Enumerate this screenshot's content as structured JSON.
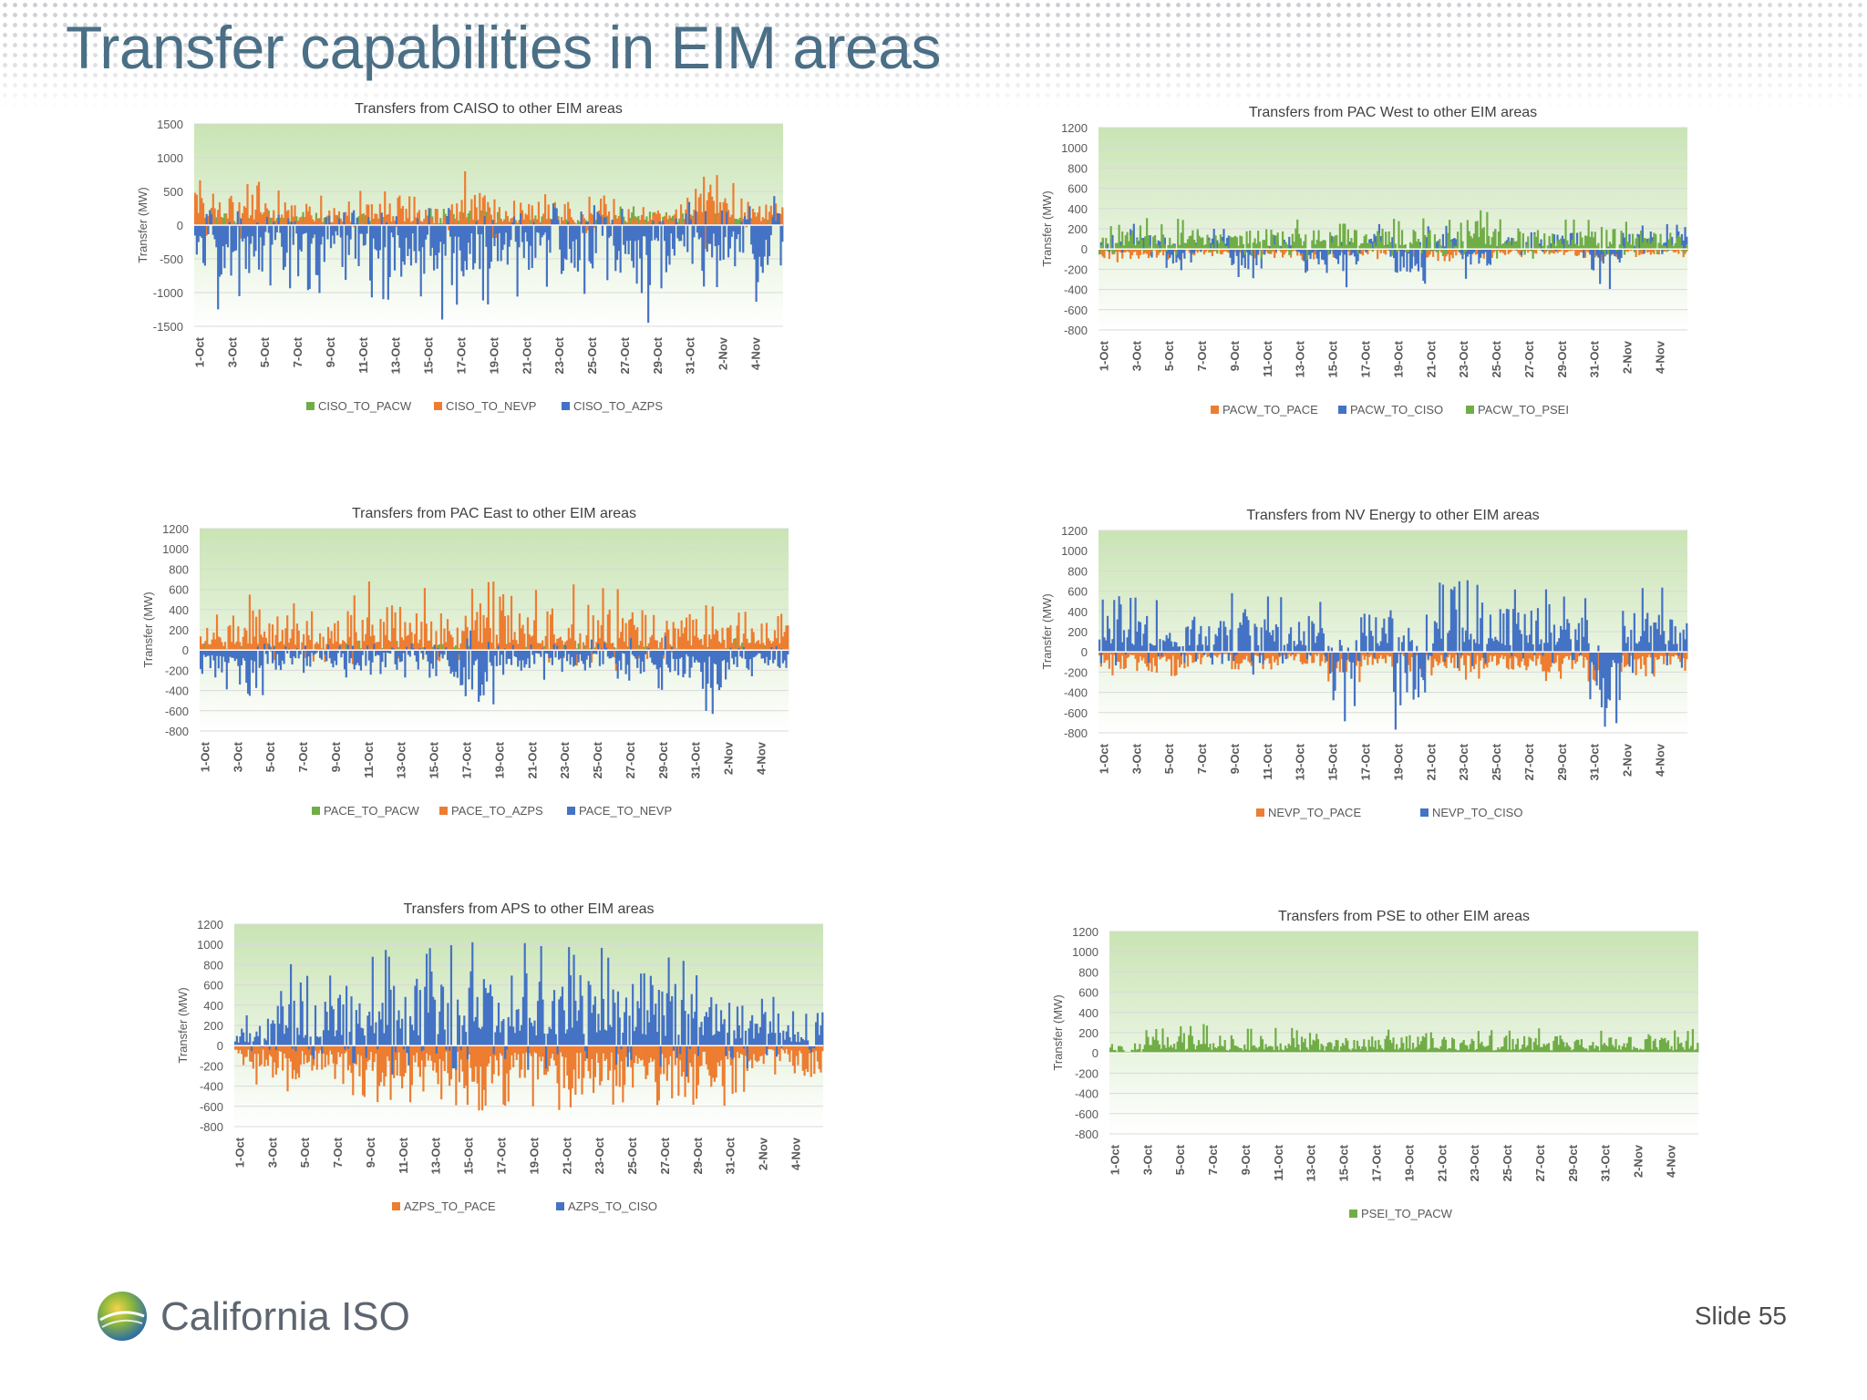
{
  "slide": {
    "title": "Transfer capabilities in EIM areas",
    "logo_text": "California ISO",
    "slide_number": "Slide 55"
  },
  "colors": {
    "green": "#70ad47",
    "orange": "#ed7d31",
    "blue": "#4472c4",
    "title": "#4a6f86",
    "plot_bg_top": "#c9e4b4",
    "plot_bg_bottom": "#ffffff"
  },
  "chart_data": [
    {
      "type": "bar",
      "title": "Transfers from CAISO to other EIM areas",
      "ylabel": "Transfer (MW)",
      "xlabel": "",
      "ylim": [
        -1500,
        1500
      ],
      "yticks": [
        1500,
        1000,
        500,
        0,
        -500,
        -1000,
        -1500
      ],
      "categories": [
        "1-Oct",
        "3-Oct",
        "5-Oct",
        "7-Oct",
        "9-Oct",
        "11-Oct",
        "13-Oct",
        "15-Oct",
        "17-Oct",
        "19-Oct",
        "21-Oct",
        "23-Oct",
        "25-Oct",
        "27-Oct",
        "29-Oct",
        "31-Oct",
        "2-Nov",
        "4-Nov"
      ],
      "legend_position": "bottom",
      "series": [
        {
          "name": "CISO_TO_PACW",
          "color": "#70ad47",
          "values": [
            300,
            150,
            250,
            200,
            150,
            250,
            100,
            250,
            350,
            200,
            250,
            150,
            150,
            300,
            300,
            350,
            200,
            150
          ]
        },
        {
          "name": "CISO_TO_NEVP",
          "color": "#ed7d31",
          "values": [
            750,
            650,
            600,
            450,
            400,
            550,
            450,
            850,
            800,
            550,
            500,
            350,
            450,
            400,
            350,
            1100,
            700,
            500
          ]
        },
        {
          "name": "CISO_TO_AZPS",
          "color": "#4472c4",
          "values": [
            -1300,
            -1150,
            -1000,
            -1100,
            -900,
            -1250,
            -1100,
            -1400,
            -1200,
            -1100,
            -1050,
            -1150,
            -1350,
            -1450,
            -1100,
            -1000,
            -900,
            -1300
          ]
        }
      ]
    },
    {
      "type": "bar",
      "title": "Transfers from PAC West to other EIM areas",
      "ylabel": "Transfer (MW)",
      "xlabel": "",
      "ylim": [
        -800,
        1200
      ],
      "yticks": [
        1200,
        1000,
        800,
        600,
        400,
        200,
        0,
        -200,
        -400,
        -600,
        -800
      ],
      "categories": [
        "1-Oct",
        "3-Oct",
        "5-Oct",
        "7-Oct",
        "9-Oct",
        "11-Oct",
        "13-Oct",
        "15-Oct",
        "17-Oct",
        "19-Oct",
        "21-Oct",
        "23-Oct",
        "25-Oct",
        "27-Oct",
        "29-Oct",
        "31-Oct",
        "2-Nov",
        "4-Nov"
      ],
      "legend_position": "bottom",
      "series": [
        {
          "name": "PACW_TO_PACE",
          "color": "#ed7d31",
          "values": [
            -150,
            -100,
            -120,
            -80,
            -100,
            -90,
            -110,
            -120,
            -100,
            -80,
            -130,
            -100,
            -90,
            -80,
            -100,
            -120,
            -90,
            -80
          ]
        },
        {
          "name": "PACW_TO_CISO",
          "color": "#4472c4",
          "values": [
            200,
            250,
            -350,
            200,
            -300,
            250,
            -250,
            -400,
            250,
            -350,
            250,
            -300,
            200,
            250,
            250,
            -400,
            250,
            250
          ]
        },
        {
          "name": "PACW_TO_PSEI",
          "color": "#70ad47",
          "values": [
            250,
            350,
            300,
            280,
            300,
            320,
            300,
            280,
            300,
            320,
            300,
            420,
            300,
            280,
            300,
            320,
            300,
            280
          ]
        }
      ]
    },
    {
      "type": "bar",
      "title": "Transfers from PAC East to other EIM areas",
      "ylabel": "Transfer (MW)",
      "xlabel": "",
      "ylim": [
        -800,
        1200
      ],
      "yticks": [
        1200,
        1000,
        800,
        600,
        400,
        200,
        0,
        -200,
        -400,
        -600,
        -800
      ],
      "categories": [
        "1-Oct",
        "3-Oct",
        "5-Oct",
        "7-Oct",
        "9-Oct",
        "11-Oct",
        "13-Oct",
        "15-Oct",
        "17-Oct",
        "19-Oct",
        "21-Oct",
        "23-Oct",
        "25-Oct",
        "27-Oct",
        "29-Oct",
        "31-Oct",
        "2-Nov",
        "4-Nov"
      ],
      "legend_position": "bottom",
      "series": [
        {
          "name": "PACE_TO_PACW",
          "color": "#70ad47",
          "values": [
            100,
            120,
            80,
            60,
            100,
            80,
            100,
            90,
            80,
            100,
            120,
            100,
            90,
            100,
            80,
            100,
            120,
            100
          ]
        },
        {
          "name": "PACE_TO_AZPS",
          "color": "#ed7d31",
          "values": [
            400,
            600,
            500,
            550,
            600,
            700,
            650,
            550,
            700,
            600,
            650,
            700,
            650,
            600,
            550,
            450,
            400,
            550
          ]
        },
        {
          "name": "PACE_TO_NEVP",
          "color": "#4472c4",
          "values": [
            -400,
            -650,
            -300,
            -250,
            -300,
            -250,
            -300,
            -400,
            -800,
            -350,
            -300,
            -350,
            -300,
            -350,
            -400,
            -650,
            -300,
            -300
          ]
        }
      ]
    },
    {
      "type": "bar",
      "title": "Transfers from NV Energy to other EIM areas",
      "ylabel": "Transfer (MW)",
      "xlabel": "",
      "ylim": [
        -800,
        1200
      ],
      "yticks": [
        1200,
        1000,
        800,
        600,
        400,
        200,
        0,
        -200,
        -400,
        -600,
        -800
      ],
      "categories": [
        "1-Oct",
        "3-Oct",
        "5-Oct",
        "7-Oct",
        "9-Oct",
        "11-Oct",
        "13-Oct",
        "15-Oct",
        "17-Oct",
        "19-Oct",
        "21-Oct",
        "23-Oct",
        "25-Oct",
        "27-Oct",
        "29-Oct",
        "31-Oct",
        "2-Nov",
        "4-Nov"
      ],
      "legend_position": "bottom",
      "series": [
        {
          "name": "NEVP_TO_PACE",
          "color": "#ed7d31",
          "values": [
            -250,
            -300,
            -250,
            -200,
            -300,
            -250,
            -200,
            -300,
            -250,
            -200,
            -250,
            -300,
            -250,
            -300,
            -300,
            -300,
            -250,
            -200
          ]
        },
        {
          "name": "NEVP_TO_CISO",
          "color": "#4472c4",
          "values": [
            550,
            600,
            500,
            550,
            650,
            600,
            550,
            -780,
            600,
            -780,
            700,
            750,
            650,
            700,
            600,
            -800,
            650,
            700
          ]
        }
      ]
    },
    {
      "type": "bar",
      "title": "Transfers from APS to other EIM areas",
      "ylabel": "Transfer (MW)",
      "xlabel": "",
      "ylim": [
        -800,
        1200
      ],
      "yticks": [
        1200,
        1000,
        800,
        600,
        400,
        200,
        0,
        -200,
        -400,
        -600,
        -800
      ],
      "categories": [
        "1-Oct",
        "3-Oct",
        "5-Oct",
        "7-Oct",
        "9-Oct",
        "11-Oct",
        "13-Oct",
        "15-Oct",
        "17-Oct",
        "19-Oct",
        "21-Oct",
        "23-Oct",
        "25-Oct",
        "27-Oct",
        "29-Oct",
        "31-Oct",
        "2-Nov",
        "4-Nov"
      ],
      "legend_position": "bottom",
      "series": [
        {
          "name": "AZPS_TO_PACE",
          "color": "#ed7d31",
          "values": [
            -400,
            -500,
            -450,
            -550,
            -600,
            -650,
            -600,
            -650,
            -600,
            -650,
            -700,
            -650,
            -600,
            -550,
            -600,
            -500,
            -300,
            -450
          ]
        },
        {
          "name": "AZPS_TO_CISO",
          "color": "#4472c4",
          "values": [
            300,
            900,
            700,
            850,
            950,
            1000,
            1050,
            1100,
            1150,
            1000,
            1050,
            1000,
            1050,
            950,
            1000,
            650,
            500,
            350
          ]
        }
      ]
    },
    {
      "type": "bar",
      "title": "Transfers from PSE to other EIM areas",
      "ylabel": "Transfer (MW)",
      "xlabel": "",
      "ylim": [
        -800,
        1200
      ],
      "yticks": [
        1200,
        1000,
        800,
        600,
        400,
        200,
        0,
        -200,
        -400,
        -600,
        -800
      ],
      "categories": [
        "1-Oct",
        "3-Oct",
        "5-Oct",
        "7-Oct",
        "9-Oct",
        "11-Oct",
        "13-Oct",
        "15-Oct",
        "17-Oct",
        "19-Oct",
        "21-Oct",
        "23-Oct",
        "25-Oct",
        "27-Oct",
        "29-Oct",
        "31-Oct",
        "2-Nov",
        "4-Nov"
      ],
      "legend_position": "bottom",
      "series": [
        {
          "name": "PSEI_TO_PACW",
          "color": "#70ad47",
          "values": [
            100,
            250,
            300,
            200,
            250,
            250,
            200,
            220,
            250,
            300,
            250,
            250,
            250,
            250,
            220,
            250,
            280,
            250
          ]
        }
      ]
    }
  ]
}
